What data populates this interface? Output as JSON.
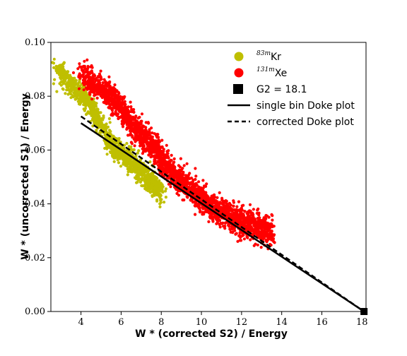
{
  "chart_data": {
    "type": "scatter",
    "xlabel": "W * (corrected S2) / Energy",
    "ylabel": "W * (uncorrected S1) / Energy",
    "xlim": [
      2.5,
      18.2
    ],
    "ylim": [
      0.0,
      0.1
    ],
    "x_ticks": [
      "4",
      "6",
      "8",
      "10",
      "12",
      "14",
      "16",
      "18"
    ],
    "y_ticks": [
      "0.00",
      "0.02",
      "0.04",
      "0.06",
      "0.08",
      "0.10"
    ],
    "legend_position": "top-right",
    "grid": false,
    "series": [
      {
        "name_sup": "83m",
        "name": "Kr",
        "kind": "scatter",
        "color": "#bfbf00",
        "centerline": [
          [
            2.8,
            0.09
          ],
          [
            3.2,
            0.087
          ],
          [
            3.6,
            0.084
          ],
          [
            4.0,
            0.081
          ],
          [
            4.4,
            0.077
          ],
          [
            4.8,
            0.072
          ],
          [
            5.2,
            0.066
          ],
          [
            5.6,
            0.061
          ],
          [
            6.0,
            0.059
          ],
          [
            6.5,
            0.056
          ],
          [
            7.0,
            0.052
          ],
          [
            7.5,
            0.048
          ],
          [
            8.0,
            0.045
          ]
        ]
      },
      {
        "name_sup": "131m",
        "name": "Xe",
        "kind": "scatter",
        "color": "#ff0000",
        "centerline": [
          [
            4.0,
            0.088
          ],
          [
            4.5,
            0.085
          ],
          [
            5.0,
            0.083
          ],
          [
            5.5,
            0.08
          ],
          [
            6.0,
            0.075
          ],
          [
            6.5,
            0.07
          ],
          [
            7.0,
            0.066
          ],
          [
            7.5,
            0.062
          ],
          [
            8.0,
            0.057
          ],
          [
            8.5,
            0.052
          ],
          [
            9.0,
            0.048
          ],
          [
            9.5,
            0.045
          ],
          [
            10.0,
            0.042
          ],
          [
            10.5,
            0.039
          ],
          [
            11.0,
            0.037
          ],
          [
            11.5,
            0.035
          ],
          [
            12.0,
            0.033
          ],
          [
            12.5,
            0.032
          ],
          [
            13.0,
            0.031
          ],
          [
            13.5,
            0.03
          ]
        ]
      },
      {
        "name": "G2 = 18.1",
        "kind": "marker",
        "color": "#000000",
        "points": [
          [
            18.1,
            0.0
          ]
        ]
      },
      {
        "name": "single bin Doke plot",
        "kind": "line",
        "style": "solid",
        "color": "#000000",
        "points": [
          [
            4.0,
            0.07
          ],
          [
            18.1,
            0.0
          ]
        ]
      },
      {
        "name": "corrected Doke plot",
        "kind": "line",
        "style": "dashed",
        "color": "#000000",
        "points": [
          [
            4.0,
            0.0725
          ],
          [
            18.1,
            0.0
          ]
        ]
      }
    ]
  }
}
